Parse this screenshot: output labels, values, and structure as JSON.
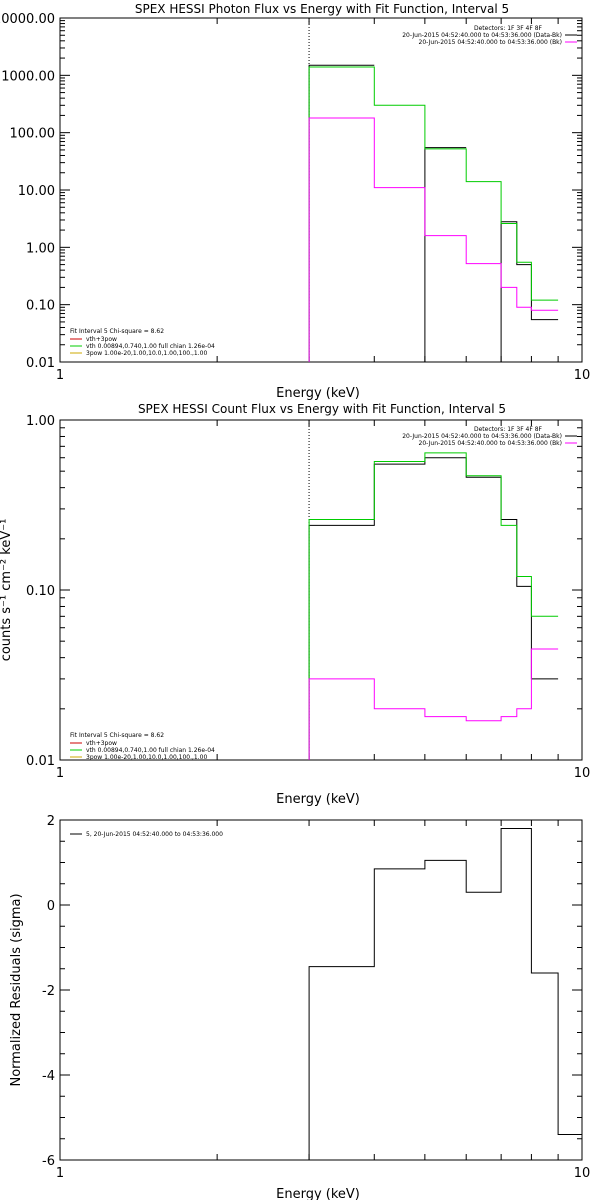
{
  "chart_data": [
    {
      "type": "line",
      "title": "SPEX HESSI Photon Flux vs Energy with Fit Function, Interval 5",
      "xlabel": "Energy (keV)",
      "ylabel": "",
      "xscale": "log",
      "yscale": "log",
      "xlim": [
        1,
        10
      ],
      "ylim": [
        0.01,
        10000
      ],
      "xticks": [
        {
          "value": 1,
          "label": "1"
        },
        {
          "value": 10,
          "label": "10"
        }
      ],
      "yticks": [
        {
          "value": 10000,
          "label": "10000.00"
        },
        {
          "value": 1000,
          "label": "1000.00"
        },
        {
          "value": 100,
          "label": "100.00"
        },
        {
          "value": 10,
          "label": "10.00"
        },
        {
          "value": 1,
          "label": "1.00"
        },
        {
          "value": 0.1,
          "label": "0.10"
        },
        {
          "value": 0.01,
          "label": "0.01"
        }
      ],
      "vline": 3.0,
      "top_legend": {
        "header": "Detectors: 1F 3F 4F 8F",
        "entries": [
          {
            "text": "20-Jun-2015 04:52:40.000 to 04:53:36.000 (Data-Bk)",
            "color": "#000000"
          },
          {
            "text": "20-Jun-2015 04:52:40.000 to 04:53:36.000 (Bk)",
            "color": "#ff00ff"
          }
        ]
      },
      "bottom_legend": {
        "header": "Fit Interval 5   Chi-square = 8.62",
        "entries": [
          {
            "text": "vth+3pow",
            "color": "#cc0000"
          },
          {
            "text": "vth 0.00894,0.740,1.00  full chian 1.26e-04",
            "color": "#00cc00"
          },
          {
            "text": "3pow 1.00e-20,1.00,10.0,1.00,100.,1.00",
            "color": "#ccaa00"
          }
        ]
      },
      "edges": [
        3.0,
        3.5,
        4.0,
        4.5,
        5.0,
        5.5,
        6.0,
        6.5,
        7.0,
        7.5,
        8.0,
        8.5,
        9.0,
        9.5,
        10.0
      ],
      "series": [
        {
          "color": "#000000",
          "values": [
            1500,
            1500,
            null,
            null,
            55,
            55,
            null,
            null,
            2.8,
            0.5,
            0.055,
            0.055,
            null,
            null
          ]
        },
        {
          "color": "#00cc00",
          "values": [
            1400,
            1400,
            300,
            300,
            52,
            52,
            14,
            14,
            2.6,
            0.55,
            0.12,
            0.12,
            null,
            null
          ]
        },
        {
          "color": "#ff00ff",
          "values": [
            180,
            180,
            11,
            11,
            1.6,
            1.6,
            0.52,
            0.52,
            0.2,
            0.09,
            0.08,
            0.08,
            null,
            null
          ]
        }
      ]
    },
    {
      "type": "line",
      "title": "SPEX HESSI Count Flux vs Energy with Fit Function, Interval 5",
      "xlabel": "Energy (keV)",
      "ylabel": "counts s⁻¹ cm⁻² keV⁻¹",
      "xscale": "log",
      "yscale": "log",
      "xlim": [
        1,
        10
      ],
      "ylim": [
        0.01,
        1.0
      ],
      "xticks": [
        {
          "value": 1,
          "label": "1"
        },
        {
          "value": 10,
          "label": "10"
        }
      ],
      "yticks": [
        {
          "value": 1.0,
          "label": "1.00"
        },
        {
          "value": 0.1,
          "label": "0.10"
        },
        {
          "value": 0.01,
          "label": "0.01"
        }
      ],
      "vline": 3.0,
      "top_legend": {
        "header": "Detectors: 1F 3F 4F 8F",
        "entries": [
          {
            "text": "20-Jun-2015 04:52:40.000 to 04:53:36.000 (Data-Bk)",
            "color": "#000000"
          },
          {
            "text": "20-Jun-2015 04:52:40.000 to 04:53:36.000 (Bk)",
            "color": "#ff00ff"
          }
        ]
      },
      "bottom_legend": {
        "header": "Fit Interval 5   Chi-square = 8.62",
        "entries": [
          {
            "text": "vth+3pow",
            "color": "#cc0000"
          },
          {
            "text": "vth 0.00894,0.740,1.00  full chian 1.26e-04",
            "color": "#00cc00"
          },
          {
            "text": "3pow 1.00e-20,1.00,10.0,1.00,100.,1.00",
            "color": "#ccaa00"
          }
        ]
      },
      "edges": [
        3.0,
        3.5,
        4.0,
        4.5,
        5.0,
        5.5,
        6.0,
        6.5,
        7.0,
        7.5,
        8.0,
        8.5,
        9.0,
        9.5,
        10.0
      ],
      "series": [
        {
          "color": "#000000",
          "values": [
            0.24,
            0.24,
            0.55,
            0.55,
            0.6,
            0.6,
            0.46,
            0.46,
            0.26,
            0.105,
            0.03,
            0.03,
            null,
            null
          ]
        },
        {
          "color": "#00cc00",
          "values": [
            0.26,
            0.26,
            0.57,
            0.57,
            0.64,
            0.64,
            0.47,
            0.47,
            0.24,
            0.12,
            0.07,
            0.07,
            null,
            null
          ]
        },
        {
          "color": "#ff00ff",
          "values": [
            0.03,
            0.03,
            0.02,
            0.02,
            0.018,
            0.018,
            0.017,
            0.017,
            0.018,
            0.02,
            0.045,
            0.045,
            null,
            null
          ]
        }
      ]
    },
    {
      "type": "line",
      "title": "",
      "xlabel": "Energy (keV)",
      "ylabel": "Normalized Residuals (sigma)",
      "xscale": "log",
      "yscale": "linear",
      "xlim": [
        1,
        10
      ],
      "ylim": [
        -6,
        2
      ],
      "xticks": [
        {
          "value": 1,
          "label": "1"
        },
        {
          "value": 10,
          "label": "10"
        }
      ],
      "yticks": [
        {
          "value": 2,
          "label": "2"
        },
        {
          "value": 0,
          "label": "0"
        },
        {
          "value": -2,
          "label": "-2"
        },
        {
          "value": -4,
          "label": "-4"
        },
        {
          "value": -6,
          "label": "-6"
        }
      ],
      "top_legend": {
        "header": "",
        "entries": [
          {
            "text": "5, 20-Jun-2015 04:52:40.000 to 04:53:36.000",
            "color": "#000000"
          }
        ]
      },
      "edges": [
        3.0,
        4.0,
        5.0,
        6.0,
        7.0,
        8.0,
        9.0,
        10.0
      ],
      "series": [
        {
          "color": "#000000",
          "values": [
            -1.45,
            0.85,
            1.05,
            0.3,
            1.8,
            -1.6,
            -5.4
          ]
        }
      ]
    }
  ]
}
